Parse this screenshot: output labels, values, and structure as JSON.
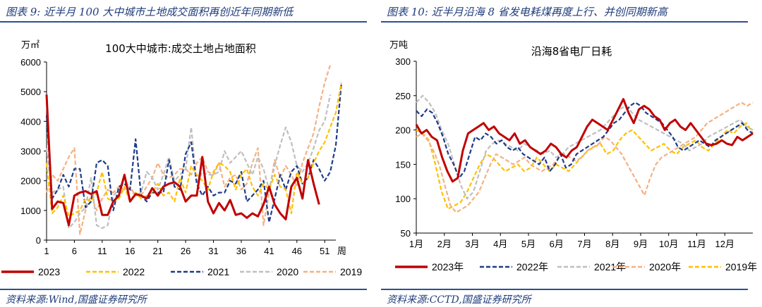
{
  "left": {
    "header": "图表 9:  近半月 100 大中城市土地成交面积再创近年同期新低",
    "footer": "资料来源:Wind,国盛证券研究所"
  },
  "right": {
    "header": "图表 10:  近半月沿海 8 省发电耗煤再度上行、并创同期新高",
    "footer": "资料来源:CCTD,国盛证券研究所"
  },
  "chart_data": [
    {
      "type": "line",
      "title": "100大中城市:成交土地占地面积",
      "ylabel": "万㎡",
      "xlabel": "周",
      "ylim": [
        0,
        6000
      ],
      "yticks": [
        "0",
        "1000",
        "2000",
        "3000",
        "4000",
        "5000",
        "6000"
      ],
      "xlim": [
        1,
        53
      ],
      "xticks": [
        "1",
        "6",
        "11",
        "16",
        "21",
        "26",
        "31",
        "36",
        "41",
        "46",
        "51"
      ],
      "legend_position": "bottom",
      "series": [
        {
          "name": "2023",
          "color": "#c00000",
          "style": "solid",
          "values": [
            4900,
            1050,
            1300,
            1250,
            500,
            1500,
            1600,
            1650,
            1550,
            1650,
            850,
            850,
            1300,
            1500,
            2200,
            1300,
            1550,
            1500,
            1400,
            1750,
            1500,
            1800,
            1900,
            1950,
            1800,
            1300,
            1500,
            1500,
            2800,
            1300,
            900,
            1250,
            1000,
            1350,
            850,
            900,
            750,
            900,
            800,
            1200,
            1800,
            1200,
            900,
            700,
            1800,
            2100,
            1400,
            2700,
            1900,
            1200
          ]
        },
        {
          "name": "2022",
          "color": "#ffc000",
          "style": "dashed",
          "values": [
            2600,
            900,
            1100,
            1500,
            800,
            900,
            1000,
            1400,
            1300,
            1600,
            2300,
            1400,
            1300,
            1400,
            1800,
            1300,
            1600,
            1400,
            1500,
            1600,
            1900,
            1500,
            1600,
            1300,
            2100,
            1600,
            2500,
            2200,
            2000,
            1700,
            2300,
            2600,
            2500,
            2300,
            1700,
            2200,
            2400,
            1800,
            1500,
            1900,
            1700,
            2200,
            1800,
            1700,
            900,
            2300,
            1900,
            2100,
            2600,
            3000,
            3300,
            3800,
            4300,
            5300
          ]
        },
        {
          "name": "2021",
          "color": "#1f3c88",
          "style": "dashed",
          "values": [
            4200,
            1400,
            1700,
            2200,
            1800,
            2400,
            2400,
            1100,
            1300,
            2600,
            2700,
            2500,
            1000,
            1800,
            1900,
            1700,
            3400,
            1500,
            1300,
            1600,
            1600,
            1600,
            2700,
            1800,
            1700,
            2900,
            3300,
            1900,
            1500,
            1800,
            1500,
            1600,
            1600,
            2000,
            1900,
            2300,
            1300,
            1500,
            1700,
            2000,
            600,
            1400,
            2200,
            1700,
            2300,
            2500,
            1900,
            2100,
            2700,
            2400,
            2000,
            2300,
            3200,
            5300
          ]
        },
        {
          "name": "2020",
          "color": "#bfbfbf",
          "style": "dashed",
          "values": [
            3100,
            1600,
            1700,
            1800,
            400,
            600,
            900,
            1100,
            2100,
            500,
            400,
            500,
            1500,
            1700,
            2100,
            1700,
            1500,
            1600,
            2300,
            2100,
            1700,
            2200,
            2800,
            2000,
            2200,
            2400,
            3800,
            1900,
            2300,
            2200,
            2200,
            2300,
            3000,
            2600,
            2800,
            3000,
            2600,
            2200,
            2800,
            2400,
            1700,
            2500,
            3200,
            3800,
            3300,
            2500,
            2300,
            2600,
            3100,
            3700,
            4000,
            4900
          ]
        },
        {
          "name": "2019",
          "color": "#f4b183",
          "style": "dashed",
          "values": [
            1600,
            2200,
            2000,
            2400,
            2800,
            3100,
            200,
            1000,
            1500,
            1000,
            1400,
            1700,
            1600,
            1800,
            1700,
            1800,
            1500,
            1500,
            1800,
            2100,
            2600,
            2200,
            2100,
            2200,
            2400,
            2400,
            2200,
            2600,
            2800,
            2300,
            2200,
            2600,
            1800,
            2100,
            2200,
            1700,
            1900,
            2600,
            3100,
            500,
            1600,
            2700,
            2100,
            2500,
            2200,
            1800,
            2600,
            3100,
            3600,
            4500,
            5300,
            5900
          ]
        }
      ]
    },
    {
      "type": "line",
      "title": "沿海8省电厂日耗",
      "ylabel": "万吨",
      "ylim": [
        50,
        300
      ],
      "yticks": [
        "50",
        "100",
        "150",
        "200",
        "250",
        "300"
      ],
      "xticks": [
        "1月",
        "2月",
        "3月",
        "4月",
        "5月",
        "6月",
        "7月",
        "8月",
        "9月",
        "10月",
        "11月",
        "12月"
      ],
      "legend_position": "bottom",
      "series": [
        {
          "name": "2023年",
          "color": "#c00000",
          "style": "solid",
          "values": [
            208,
            195,
            200,
            190,
            185,
            160,
            140,
            125,
            130,
            170,
            195,
            200,
            205,
            210,
            200,
            205,
            195,
            190,
            185,
            195,
            180,
            185,
            175,
            170,
            165,
            170,
            180,
            175,
            165,
            160,
            170,
            175,
            190,
            205,
            215,
            210,
            205,
            200,
            215,
            230,
            245,
            225,
            210,
            230,
            235,
            230,
            220,
            215,
            200,
            210,
            215,
            205,
            200,
            210,
            200,
            190,
            180,
            178,
            180,
            185,
            180,
            178,
            190,
            185,
            190,
            195
          ]
        },
        {
          "name": "2022年",
          "color": "#1f3c88",
          "style": "dashed",
          "values": [
            228,
            220,
            230,
            225,
            210,
            190,
            165,
            150,
            130,
            140,
            165,
            190,
            185,
            195,
            190,
            180,
            185,
            175,
            170,
            175,
            165,
            160,
            155,
            150,
            160,
            140,
            150,
            165,
            145,
            150,
            165,
            170,
            175,
            180,
            185,
            190,
            200,
            210,
            215,
            225,
            235,
            240,
            235,
            225,
            220,
            215,
            210,
            200,
            190,
            175,
            170,
            175,
            180,
            185,
            180,
            175,
            185,
            190,
            195,
            200,
            205,
            210,
            200,
            195
          ]
        },
        {
          "name": "2021年",
          "color": "#bfbfbf",
          "style": "dashed",
          "values": [
            240,
            250,
            240,
            225,
            200,
            180,
            150,
            120,
            100,
            110,
            140,
            170,
            180,
            185,
            180,
            175,
            170,
            180,
            175,
            170,
            165,
            170,
            160,
            165,
            175,
            180,
            185,
            190,
            195,
            200,
            210,
            220,
            230,
            235,
            225,
            215,
            210,
            205,
            200,
            195,
            190,
            185,
            180,
            170,
            175,
            180,
            190,
            195,
            200,
            205,
            210,
            215,
            205,
            200
          ]
        },
        {
          "name": "2020年",
          "color": "#f4b183",
          "style": "dashed",
          "values": [
            190,
            195,
            185,
            170,
            150,
            120,
            90,
            80,
            85,
            90,
            100,
            110,
            130,
            150,
            165,
            160,
            155,
            150,
            155,
            160,
            150,
            145,
            140,
            145,
            150,
            160,
            165,
            160,
            155,
            160,
            170,
            175,
            180,
            190,
            185,
            175,
            165,
            150,
            135,
            120,
            105,
            130,
            150,
            160,
            165,
            170,
            175,
            180,
            185,
            190,
            200,
            210,
            215,
            220,
            225,
            230,
            235,
            240,
            235,
            240
          ]
        },
        {
          "name": "2019年",
          "color": "#ffc000",
          "style": "dashed",
          "values": [
            200,
            195,
            185,
            150,
            110,
            85,
            90,
            95,
            110,
            130,
            150,
            165,
            160,
            150,
            140,
            145,
            150,
            140,
            145,
            160,
            150,
            140,
            150,
            145,
            140,
            150,
            160,
            170,
            175,
            180,
            165,
            170,
            185,
            195,
            200,
            190,
            180,
            170,
            175,
            180,
            170,
            165,
            175,
            180,
            185,
            175,
            170,
            180,
            190,
            200,
            195,
            205,
            210,
            195
          ]
        }
      ]
    }
  ]
}
